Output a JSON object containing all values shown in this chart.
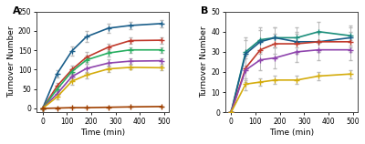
{
  "panel_A": {
    "title": "A",
    "xlabel": "Time (min)",
    "ylabel": "Turnover Number",
    "xlim": [
      -25,
      520
    ],
    "ylim": [
      -10,
      250
    ],
    "yticks": [
      0,
      50,
      100,
      150,
      200,
      250
    ],
    "xticks": [
      0,
      100,
      200,
      300,
      400,
      500
    ],
    "series": [
      {
        "color": "#1a5e8a",
        "x": [
          0,
          60,
          120,
          180,
          270,
          360,
          490
        ],
        "y": [
          0,
          90,
          148,
          185,
          207,
          214,
          219
        ],
        "yerr": [
          0,
          9,
          12,
          14,
          11,
          9,
          9
        ]
      },
      {
        "color": "#c0392b",
        "x": [
          0,
          60,
          120,
          180,
          270,
          360,
          490
        ],
        "y": [
          0,
          58,
          100,
          132,
          158,
          175,
          176
        ],
        "yerr": [
          0,
          8,
          10,
          13,
          10,
          8,
          8
        ]
      },
      {
        "color": "#27ae60",
        "x": [
          0,
          60,
          120,
          180,
          270,
          360,
          490
        ],
        "y": [
          0,
          50,
          95,
          125,
          143,
          151,
          151
        ],
        "yerr": [
          0,
          7,
          9,
          11,
          9,
          7,
          7
        ]
      },
      {
        "color": "#8e44ad",
        "x": [
          0,
          60,
          120,
          180,
          270,
          360,
          490
        ],
        "y": [
          0,
          38,
          82,
          103,
          117,
          122,
          123
        ],
        "yerr": [
          0,
          7,
          9,
          11,
          9,
          7,
          7
        ]
      },
      {
        "color": "#d4ac0d",
        "x": [
          0,
          60,
          120,
          180,
          270,
          360,
          490
        ],
        "y": [
          0,
          30,
          70,
          86,
          102,
          106,
          105
        ],
        "yerr": [
          0,
          6,
          8,
          9,
          8,
          6,
          6
        ]
      },
      {
        "color": "#a04000",
        "x": [
          0,
          60,
          120,
          180,
          270,
          360,
          490
        ],
        "y": [
          0,
          1,
          2,
          2,
          3,
          4,
          5
        ],
        "yerr": [
          0,
          0.5,
          0.5,
          0.5,
          0.5,
          0.5,
          0.5
        ]
      }
    ]
  },
  "panel_B": {
    "title": "B",
    "xlabel": "Time (min)",
    "ylabel": "Turnover Number",
    "xlim": [
      -25,
      520
    ],
    "ylim": [
      0,
      50
    ],
    "yticks": [
      0,
      10,
      20,
      30,
      40,
      50
    ],
    "xticks": [
      0,
      100,
      200,
      300,
      400,
      500
    ],
    "series": [
      {
        "color": "#1a8e7a",
        "x": [
          0,
          60,
          120,
          180,
          270,
          360,
          490
        ],
        "y": [
          0,
          30,
          36,
          37,
          37,
          40,
          38
        ],
        "yerr": [
          0,
          7,
          6,
          5,
          5,
          5,
          5
        ]
      },
      {
        "color": "#1a5e8a",
        "x": [
          0,
          60,
          120,
          180,
          270,
          360,
          490
        ],
        "y": [
          0,
          29,
          35,
          37,
          35,
          35,
          37
        ],
        "yerr": [
          0,
          7,
          6,
          5,
          5,
          5,
          5
        ]
      },
      {
        "color": "#c0392b",
        "x": [
          0,
          60,
          120,
          180,
          270,
          360,
          490
        ],
        "y": [
          0,
          22,
          31,
          34,
          34,
          35,
          35
        ],
        "yerr": [
          0,
          6,
          5,
          5,
          5,
          5,
          5
        ]
      },
      {
        "color": "#8e44ad",
        "x": [
          0,
          60,
          120,
          180,
          270,
          360,
          490
        ],
        "y": [
          0,
          21,
          26,
          27,
          30,
          31,
          31
        ],
        "yerr": [
          0,
          6,
          5,
          5,
          5,
          5,
          5
        ]
      },
      {
        "color": "#d4ac0d",
        "x": [
          0,
          60,
          120,
          180,
          270,
          360,
          490
        ],
        "y": [
          0,
          14,
          15,
          16,
          16,
          18,
          19
        ],
        "yerr": [
          0,
          3,
          2,
          2,
          2,
          2,
          2
        ]
      }
    ]
  },
  "background_color": "#ffffff",
  "marker": "+",
  "markersize": 5,
  "linewidth": 1.2,
  "capsize": 1.5,
  "elinewidth": 0.7,
  "ecolor": "#bbbbbb"
}
